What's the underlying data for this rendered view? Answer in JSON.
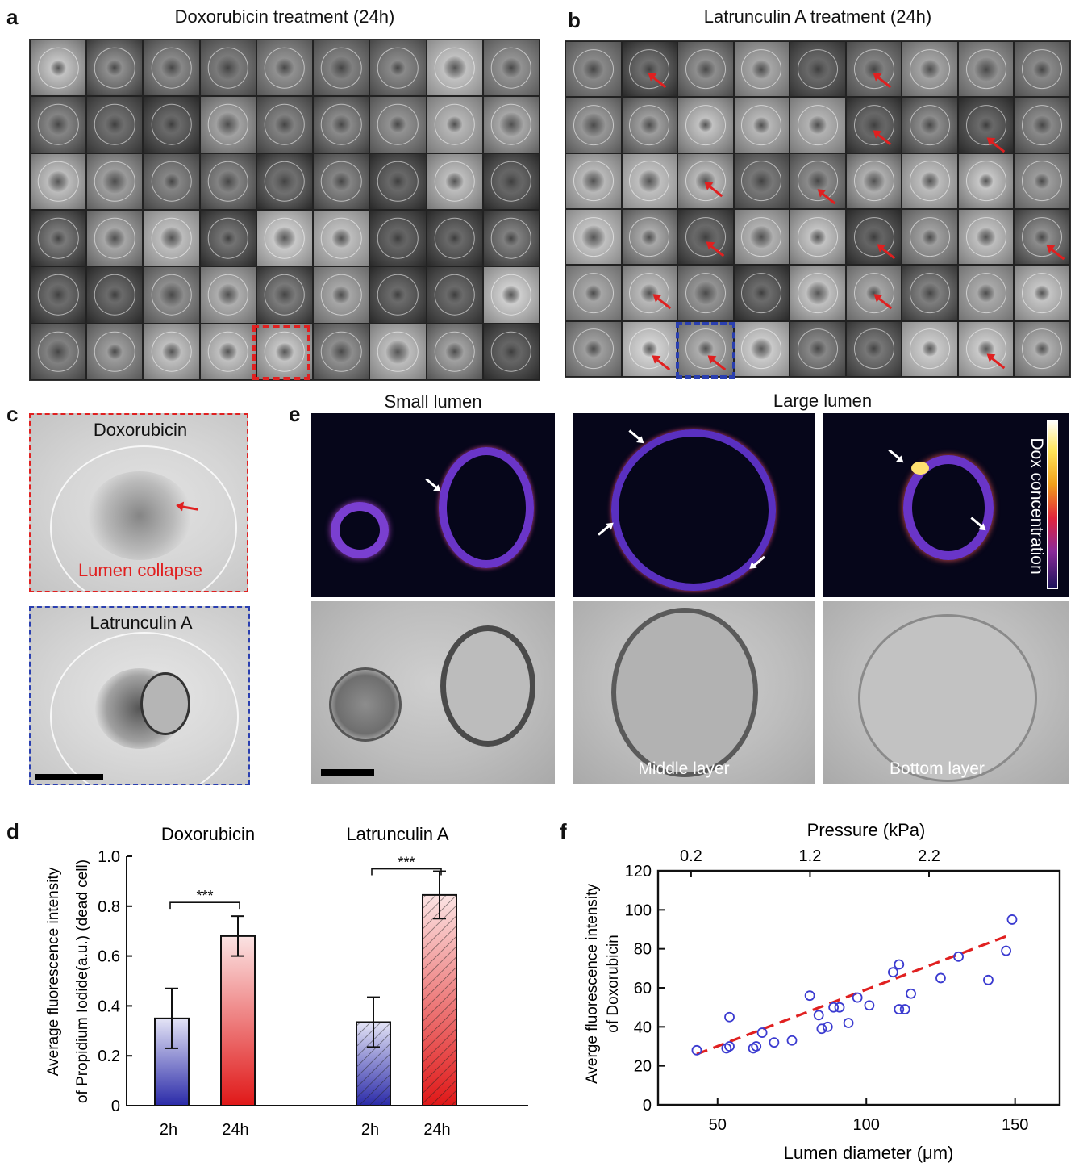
{
  "panel_a": {
    "label": "a",
    "title": "Doxorubicin treatment (24h)"
  },
  "panel_b": {
    "label": "b",
    "title": "Latrunculin A treatment (24h)"
  },
  "panel_c": {
    "label": "c",
    "top_title": "Doxorubicin",
    "top_caption": "Lumen collapse",
    "bottom_title": "Latrunculin A"
  },
  "panel_e": {
    "label": "e",
    "small_title": "Small lumen",
    "large_title": "Large lumen",
    "colorbar_label": "Dox concentration",
    "middle_caption": "Middle layer",
    "bottom_caption": "Bottom layer"
  },
  "panel_d": {
    "label": "d"
  },
  "panel_f": {
    "label": "f"
  },
  "colors": {
    "red_box": "#e02020",
    "blue_box": "#2a3fb0",
    "fit_line": "#e02020",
    "marker": "#3b3bd0"
  },
  "chart_data": [
    {
      "type": "bar",
      "groups": [
        {
          "name": "Doxorubicin",
          "categories": [
            "2h",
            "24h"
          ],
          "values": [
            0.35,
            0.68
          ],
          "errors": [
            0.12,
            0.08
          ],
          "significance": "***"
        },
        {
          "name": "Latrunculin A",
          "categories": [
            "2h",
            "24h"
          ],
          "values": [
            0.335,
            0.845
          ],
          "errors": [
            0.1,
            0.095
          ],
          "significance": "***"
        }
      ],
      "ylabel_line1": "Average fluorescence intensity",
      "ylabel_line2": "of Propidium Iodide(a.u.) (dead cell)",
      "ylim": [
        0,
        1.0
      ],
      "yticks": [
        "0",
        "0.2",
        "0.4",
        "0.6",
        "0.8",
        "1.0"
      ]
    },
    {
      "type": "scatter",
      "xlabel": "Lumen diameter (μm)",
      "x2label": "Pressure (kPa)",
      "ylabel_line1": "Averge fluorescence intensity",
      "ylabel_line2": "of Doxorubicin",
      "xlim": [
        30,
        165
      ],
      "ylim": [
        0,
        120
      ],
      "xticks": [
        "50",
        "100",
        "150"
      ],
      "x2ticks": [
        "0.2",
        "1.2",
        "2.2"
      ],
      "yticks": [
        "0",
        "20",
        "40",
        "60",
        "80",
        "100",
        "120"
      ],
      "points": [
        {
          "x": 43,
          "y": 28
        },
        {
          "x": 53,
          "y": 29
        },
        {
          "x": 54,
          "y": 30
        },
        {
          "x": 54,
          "y": 45
        },
        {
          "x": 62,
          "y": 29
        },
        {
          "x": 63,
          "y": 30
        },
        {
          "x": 65,
          "y": 37
        },
        {
          "x": 69,
          "y": 32
        },
        {
          "x": 75,
          "y": 33
        },
        {
          "x": 81,
          "y": 56
        },
        {
          "x": 84,
          "y": 46
        },
        {
          "x": 85,
          "y": 39
        },
        {
          "x": 87,
          "y": 40
        },
        {
          "x": 89,
          "y": 50
        },
        {
          "x": 91,
          "y": 50
        },
        {
          "x": 94,
          "y": 42
        },
        {
          "x": 97,
          "y": 55
        },
        {
          "x": 101,
          "y": 51
        },
        {
          "x": 109,
          "y": 68
        },
        {
          "x": 111,
          "y": 72
        },
        {
          "x": 111,
          "y": 49
        },
        {
          "x": 113,
          "y": 49
        },
        {
          "x": 115,
          "y": 57
        },
        {
          "x": 125,
          "y": 65
        },
        {
          "x": 131,
          "y": 76
        },
        {
          "x": 141,
          "y": 64
        },
        {
          "x": 147,
          "y": 79
        },
        {
          "x": 149,
          "y": 95
        }
      ],
      "fit": [
        {
          "x": 43,
          "y": 26
        },
        {
          "x": 148,
          "y": 87
        }
      ]
    }
  ]
}
